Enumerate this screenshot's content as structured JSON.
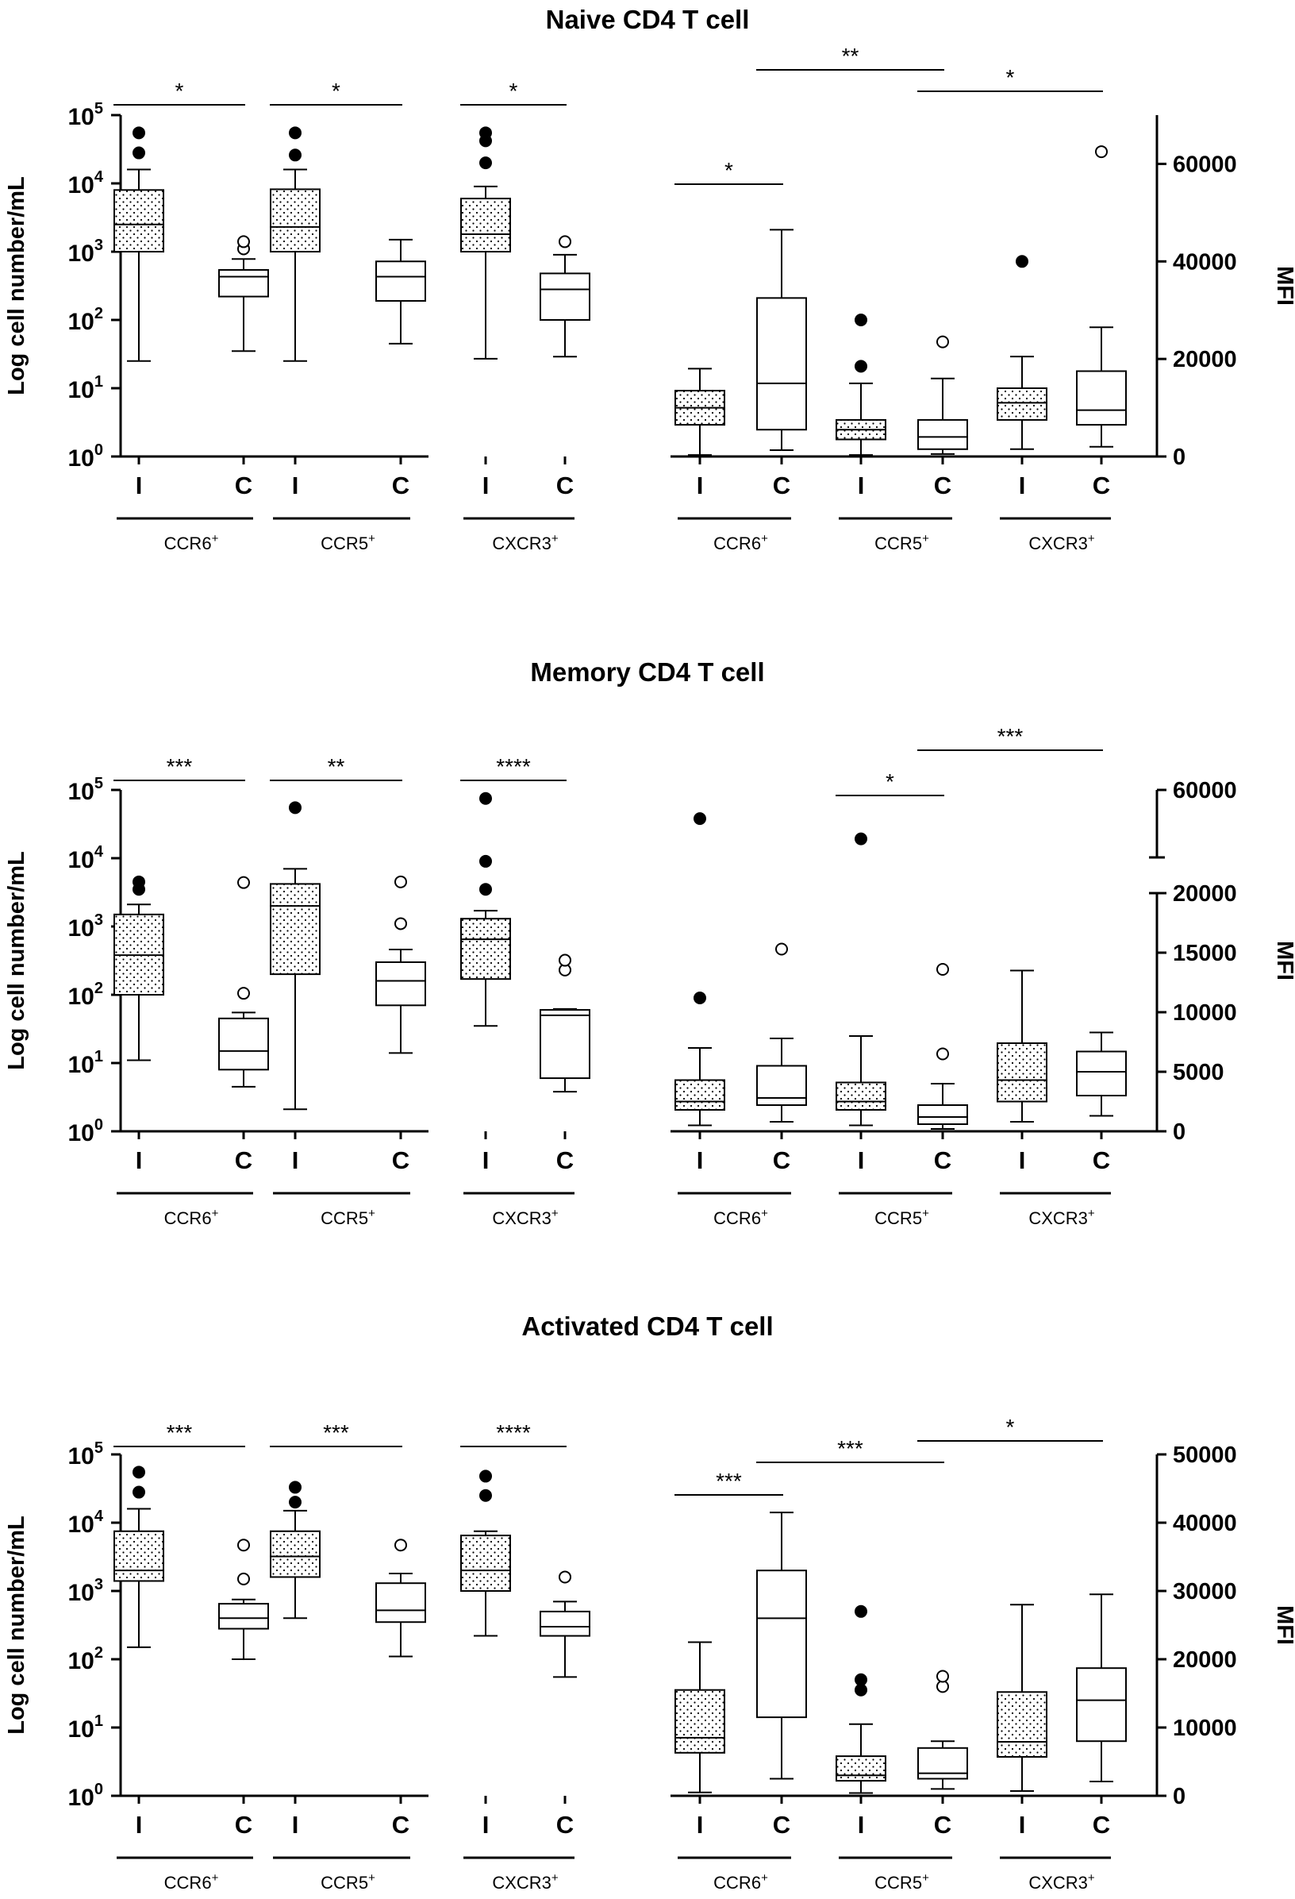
{
  "figure_colors": {
    "ink": "#000000",
    "fill": "#ffffff"
  },
  "chart_data": [
    {
      "type": "box",
      "title": "Naive CD4 T cell",
      "ylabel_left": "Log cell number/mL",
      "ylabel_right": "MFI",
      "left_axis": {
        "scale": "log",
        "ylim": [
          1,
          100000
        ],
        "ticks": [
          {
            "v": 1,
            "base": "10",
            "exp": "0"
          },
          {
            "v": 10,
            "base": "10",
            "exp": "1"
          },
          {
            "v": 100,
            "base": "10",
            "exp": "2"
          },
          {
            "v": 1000,
            "base": "10",
            "exp": "3"
          },
          {
            "v": 10000,
            "base": "10",
            "exp": "4"
          },
          {
            "v": 100000,
            "base": "10",
            "exp": "5"
          }
        ]
      },
      "right_axis": {
        "scale": "linear",
        "ylim": [
          0,
          70000
        ],
        "ticks": [
          {
            "v": 0,
            "label": "0"
          },
          {
            "v": 20000,
            "label": "20000"
          },
          {
            "v": 40000,
            "label": "40000"
          },
          {
            "v": 60000,
            "label": "60000"
          }
        ]
      },
      "boxes": [
        {
          "group": "CCR6",
          "cond": "I",
          "axis": "left",
          "pattern": "dots",
          "min": 25,
          "q1": 1000,
          "median": 2500,
          "q3": 8000,
          "max": 16000,
          "outliers": [
            28000,
            55000
          ]
        },
        {
          "group": "CCR6",
          "cond": "C",
          "axis": "left",
          "pattern": "none",
          "min": 35,
          "q1": 220,
          "median": 430,
          "q3": 540,
          "max": 780,
          "outliers": [
            1100,
            1400
          ]
        },
        {
          "group": "CCR5",
          "cond": "I",
          "axis": "left",
          "pattern": "dots",
          "min": 25,
          "q1": 1000,
          "median": 2300,
          "q3": 8200,
          "max": 16000,
          "outliers": [
            26000,
            55000
          ]
        },
        {
          "group": "CCR5",
          "cond": "C",
          "axis": "left",
          "pattern": "none",
          "min": 45,
          "q1": 190,
          "median": 430,
          "q3": 720,
          "max": 1500,
          "outliers": []
        },
        {
          "group": "CXCR3",
          "cond": "I",
          "axis": "left",
          "pattern": "dots",
          "min": 27,
          "q1": 1000,
          "median": 1800,
          "q3": 6000,
          "max": 9000,
          "outliers": [
            20000,
            42000,
            55000
          ]
        },
        {
          "group": "CXCR3",
          "cond": "C",
          "axis": "left",
          "pattern": "none",
          "min": 29,
          "q1": 100,
          "median": 280,
          "q3": 480,
          "max": 900,
          "outliers": [
            1400
          ]
        },
        {
          "group": "CCR6",
          "cond": "I",
          "axis": "right",
          "pattern": "dots",
          "min": 300,
          "q1": 6500,
          "median": 10000,
          "q3": 13500,
          "max": 18000,
          "outliers": []
        },
        {
          "group": "CCR6",
          "cond": "C",
          "axis": "right",
          "pattern": "none",
          "min": 1300,
          "q1": 5500,
          "median": 15000,
          "q3": 32500,
          "max": 46500,
          "outliers": []
        },
        {
          "group": "CCR5",
          "cond": "I",
          "axis": "right",
          "pattern": "dots",
          "min": 300,
          "q1": 3500,
          "median": 5500,
          "q3": 7500,
          "max": 15000,
          "outliers": [
            18500,
            28000
          ]
        },
        {
          "group": "CCR5",
          "cond": "C",
          "axis": "right",
          "pattern": "none",
          "min": 500,
          "q1": 1500,
          "median": 4000,
          "q3": 7500,
          "max": 16000,
          "outliers": [
            23500
          ]
        },
        {
          "group": "CXCR3",
          "cond": "I",
          "axis": "right",
          "pattern": "dots",
          "min": 1500,
          "q1": 7500,
          "median": 11000,
          "q3": 14000,
          "max": 20500,
          "outliers": [
            40000
          ]
        },
        {
          "group": "CXCR3",
          "cond": "C",
          "axis": "right",
          "pattern": "none",
          "min": 2000,
          "q1": 6500,
          "median": 9500,
          "q3": 17500,
          "max": 26500,
          "outliers": [
            62500
          ]
        }
      ],
      "significance": [
        {
          "label": "*",
          "from": 0,
          "to": 1,
          "level": 1
        },
        {
          "label": "*",
          "from": 2,
          "to": 3,
          "level": 1
        },
        {
          "label": "*",
          "from": 4,
          "to": 5,
          "level": 1
        },
        {
          "label": "*",
          "from": 6,
          "to": 7,
          "level": 0
        },
        {
          "label": "**",
          "from": 7,
          "to": 9,
          "level": 2
        },
        {
          "label": "*",
          "from": 9,
          "to": 11,
          "level": 3
        }
      ]
    },
    {
      "type": "box",
      "title": "Memory CD4 T cell",
      "ylabel_left": "Log cell number/mL",
      "ylabel_right": "MFI",
      "left_axis": {
        "scale": "log",
        "ylim": [
          1,
          100000
        ],
        "ticks": [
          {
            "v": 1,
            "base": "10",
            "exp": "0"
          },
          {
            "v": 10,
            "base": "10",
            "exp": "1"
          },
          {
            "v": 100,
            "base": "10",
            "exp": "2"
          },
          {
            "v": 1000,
            "base": "10",
            "exp": "3"
          },
          {
            "v": 10000,
            "base": "10",
            "exp": "4"
          },
          {
            "v": 100000,
            "base": "10",
            "exp": "5"
          }
        ]
      },
      "right_axis": {
        "scale": "broken",
        "ylim": [
          0,
          60000
        ],
        "break_at": [
          20000,
          60000
        ],
        "ticks": [
          {
            "v": 0,
            "label": "0"
          },
          {
            "v": 5000,
            "label": "5000"
          },
          {
            "v": 10000,
            "label": "10000"
          },
          {
            "v": 15000,
            "label": "15000"
          },
          {
            "v": 20000,
            "label": "20000"
          },
          {
            "v": 60000,
            "label": "60000"
          }
        ]
      },
      "boxes": [
        {
          "group": "CCR6",
          "cond": "I",
          "axis": "left",
          "pattern": "dots",
          "min": 11,
          "q1": 100,
          "median": 380,
          "q3": 1500,
          "max": 2100,
          "outliers": [
            3500,
            4500
          ]
        },
        {
          "group": "CCR6",
          "cond": "C",
          "axis": "left",
          "pattern": "none",
          "min": 4.5,
          "q1": 8,
          "median": 15,
          "q3": 45,
          "max": 55,
          "outliers": [
            105,
            4400
          ]
        },
        {
          "group": "CCR5",
          "cond": "I",
          "axis": "left",
          "pattern": "dots",
          "min": 2.1,
          "q1": 200,
          "median": 2000,
          "q3": 4200,
          "max": 7000,
          "outliers": [
            55000
          ]
        },
        {
          "group": "CCR5",
          "cond": "C",
          "axis": "left",
          "pattern": "none",
          "min": 14,
          "q1": 70,
          "median": 160,
          "q3": 300,
          "max": 460,
          "outliers": [
            1100,
            4500
          ]
        },
        {
          "group": "CXCR3",
          "cond": "I",
          "axis": "left",
          "pattern": "dots",
          "min": 35,
          "q1": 170,
          "median": 650,
          "q3": 1300,
          "max": 1700,
          "outliers": [
            3500,
            9000,
            75000
          ]
        },
        {
          "group": "CXCR3",
          "cond": "C",
          "axis": "left",
          "pattern": "none",
          "min": 3.8,
          "q1": 6,
          "median": 50,
          "q3": 60,
          "max": 62,
          "outliers": [
            230,
            320
          ]
        },
        {
          "group": "CCR6",
          "cond": "I",
          "axis": "right",
          "pattern": "dots",
          "min": 500,
          "q1": 1800,
          "median": 2500,
          "q3": 4300,
          "max": 7000,
          "outliers": [
            11200,
            43000
          ]
        },
        {
          "group": "CCR6",
          "cond": "C",
          "axis": "right",
          "pattern": "none",
          "min": 800,
          "q1": 2200,
          "median": 2800,
          "q3": 5500,
          "max": 7800,
          "outliers": [
            15300
          ]
        },
        {
          "group": "CCR5",
          "cond": "I",
          "axis": "right",
          "pattern": "dots",
          "min": 500,
          "q1": 1800,
          "median": 2500,
          "q3": 4100,
          "max": 8000,
          "outliers": [
            31000
          ]
        },
        {
          "group": "CCR5",
          "cond": "C",
          "axis": "right",
          "pattern": "none",
          "min": 200,
          "q1": 600,
          "median": 1200,
          "q3": 2200,
          "max": 4000,
          "outliers": [
            6500,
            13600
          ]
        },
        {
          "group": "CXCR3",
          "cond": "I",
          "axis": "right",
          "pattern": "dots",
          "min": 800,
          "q1": 2500,
          "median": 4300,
          "q3": 7400,
          "max": 13500,
          "outliers": []
        },
        {
          "group": "CXCR3",
          "cond": "C",
          "axis": "right",
          "pattern": "none",
          "min": 1300,
          "q1": 3000,
          "median": 5000,
          "q3": 6700,
          "max": 8300,
          "outliers": []
        }
      ],
      "significance": [
        {
          "label": "***",
          "from": 0,
          "to": 1,
          "level": 1
        },
        {
          "label": "**",
          "from": 2,
          "to": 3,
          "level": 1
        },
        {
          "label": "****",
          "from": 4,
          "to": 5,
          "level": 1
        },
        {
          "label": "*",
          "from": 8,
          "to": 9,
          "level": 0
        },
        {
          "label": "***",
          "from": 9,
          "to": 11,
          "level": 2
        }
      ]
    },
    {
      "type": "box",
      "title": "Activated CD4 T cell",
      "ylabel_left": "Log cell number/mL",
      "ylabel_right": "MFI",
      "left_axis": {
        "scale": "log",
        "ylim": [
          1,
          100000
        ],
        "ticks": [
          {
            "v": 1,
            "base": "10",
            "exp": "0"
          },
          {
            "v": 10,
            "base": "10",
            "exp": "1"
          },
          {
            "v": 100,
            "base": "10",
            "exp": "2"
          },
          {
            "v": 1000,
            "base": "10",
            "exp": "3"
          },
          {
            "v": 10000,
            "base": "10",
            "exp": "4"
          },
          {
            "v": 100000,
            "base": "10",
            "exp": "5"
          }
        ]
      },
      "right_axis": {
        "scale": "linear",
        "ylim": [
          0,
          50000
        ],
        "ticks": [
          {
            "v": 0,
            "label": "0"
          },
          {
            "v": 10000,
            "label": "10000"
          },
          {
            "v": 20000,
            "label": "20000"
          },
          {
            "v": 30000,
            "label": "30000"
          },
          {
            "v": 40000,
            "label": "40000"
          },
          {
            "v": 50000,
            "label": "50000"
          }
        ]
      },
      "boxes": [
        {
          "group": "CCR6",
          "cond": "I",
          "axis": "left",
          "pattern": "dots",
          "min": 150,
          "q1": 1400,
          "median": 2000,
          "q3": 7500,
          "max": 16000,
          "outliers": [
            28000,
            55000
          ]
        },
        {
          "group": "CCR6",
          "cond": "C",
          "axis": "left",
          "pattern": "none",
          "min": 100,
          "q1": 280,
          "median": 400,
          "q3": 650,
          "max": 750,
          "outliers": [
            1500,
            4700
          ]
        },
        {
          "group": "CCR5",
          "cond": "I",
          "axis": "left",
          "pattern": "dots",
          "min": 400,
          "q1": 1600,
          "median": 3200,
          "q3": 7500,
          "max": 15000,
          "outliers": [
            20000,
            33000
          ]
        },
        {
          "group": "CCR5",
          "cond": "C",
          "axis": "left",
          "pattern": "none",
          "min": 110,
          "q1": 350,
          "median": 520,
          "q3": 1300,
          "max": 1800,
          "outliers": [
            4700
          ]
        },
        {
          "group": "CXCR3",
          "cond": "I",
          "axis": "left",
          "pattern": "dots",
          "min": 220,
          "q1": 1000,
          "median": 2000,
          "q3": 6500,
          "max": 7500,
          "outliers": [
            25000,
            48000
          ]
        },
        {
          "group": "CXCR3",
          "cond": "C",
          "axis": "left",
          "pattern": "none",
          "min": 55,
          "q1": 220,
          "median": 300,
          "q3": 500,
          "max": 700,
          "outliers": [
            1600
          ]
        },
        {
          "group": "CCR6",
          "cond": "I",
          "axis": "right",
          "pattern": "dots",
          "min": 500,
          "q1": 6300,
          "median": 8500,
          "q3": 15500,
          "max": 22500,
          "outliers": []
        },
        {
          "group": "CCR6",
          "cond": "C",
          "axis": "right",
          "pattern": "none",
          "min": 2500,
          "q1": 11500,
          "median": 26000,
          "q3": 33000,
          "max": 41500,
          "outliers": []
        },
        {
          "group": "CCR5",
          "cond": "I",
          "axis": "right",
          "pattern": "dots",
          "min": 400,
          "q1": 2200,
          "median": 3000,
          "q3": 5800,
          "max": 10500,
          "outliers": [
            15500,
            17000,
            27000
          ]
        },
        {
          "group": "CCR5",
          "cond": "C",
          "axis": "right",
          "pattern": "none",
          "min": 1000,
          "q1": 2500,
          "median": 3300,
          "q3": 7000,
          "max": 8000,
          "outliers": [
            16000,
            17500
          ]
        },
        {
          "group": "CXCR3",
          "cond": "I",
          "axis": "right",
          "pattern": "dots",
          "min": 700,
          "q1": 5700,
          "median": 7900,
          "q3": 15200,
          "max": 28000,
          "outliers": []
        },
        {
          "group": "CXCR3",
          "cond": "C",
          "axis": "right",
          "pattern": "none",
          "min": 2100,
          "q1": 8000,
          "median": 14000,
          "q3": 18700,
          "max": 29500,
          "outliers": []
        }
      ],
      "significance": [
        {
          "label": "***",
          "from": 0,
          "to": 1,
          "level": 1
        },
        {
          "label": "***",
          "from": 2,
          "to": 3,
          "level": 1
        },
        {
          "label": "****",
          "from": 4,
          "to": 5,
          "level": 1
        },
        {
          "label": "***",
          "from": 6,
          "to": 7,
          "level": 0
        },
        {
          "label": "***",
          "from": 7,
          "to": 9,
          "level": 2
        },
        {
          "label": "*",
          "from": 9,
          "to": 11,
          "level": 3
        }
      ]
    }
  ],
  "condition_labels": [
    "I",
    "C"
  ],
  "group_labels": [
    {
      "name": "CCR6",
      "sup": "+"
    },
    {
      "name": "CCR5",
      "sup": "+"
    },
    {
      "name": "CXCR3",
      "sup": "+"
    },
    {
      "name": "CCR6",
      "sup": "+"
    },
    {
      "name": "CCR5",
      "sup": "+"
    },
    {
      "name": "CXCR3",
      "sup": "+"
    }
  ]
}
